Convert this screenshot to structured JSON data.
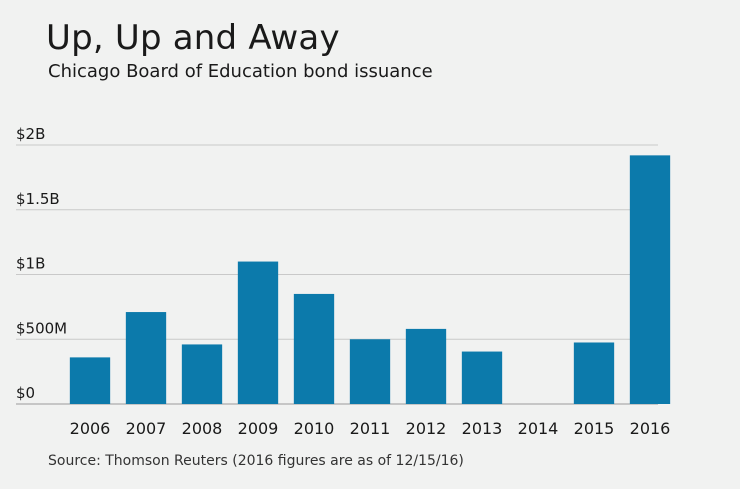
{
  "chart_data": {
    "type": "bar",
    "title": "Up, Up and Away",
    "subtitle": "Chicago Board of Education bond issuance",
    "source": "Source: Thomson Reuters (2016 figures are as of 12/15/16)",
    "xlabel": "",
    "ylabel": "",
    "ylim": [
      0,
      2000
    ],
    "y_unit": "millions USD",
    "y_ticks": [
      {
        "value": 0,
        "label": "$0"
      },
      {
        "value": 500,
        "label": "$500M"
      },
      {
        "value": 1000,
        "label": "$1B"
      },
      {
        "value": 1500,
        "label": "$1.5B"
      },
      {
        "value": 2000,
        "label": "$2B"
      }
    ],
    "categories": [
      "2006",
      "2007",
      "2008",
      "2009",
      "2010",
      "2011",
      "2012",
      "2013",
      "2014",
      "2015",
      "2016"
    ],
    "values": [
      360,
      710,
      460,
      1100,
      850,
      500,
      580,
      405,
      0,
      475,
      1920
    ],
    "bar_color": "#0c7aab",
    "grid_color": "#c9c9c9",
    "grid": true
  }
}
